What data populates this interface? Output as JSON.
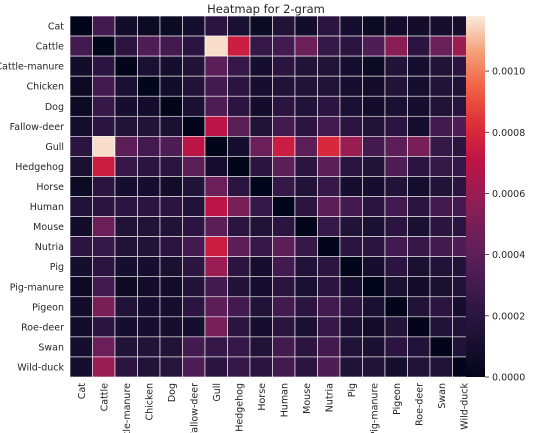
{
  "chart_data": {
    "type": "heatmap",
    "title": "Heatmap for 2-gram",
    "xlabel": "",
    "ylabel": "",
    "x_labels": [
      "Cat",
      "Cattle",
      "Cattle-manure",
      "Chicken",
      "Dog",
      "Fallow-deer",
      "Gull",
      "Hedgehog",
      "Horse",
      "Human",
      "Mouse",
      "Nutria",
      "Pig",
      "Pig-manure",
      "Pigeon",
      "Roe-deer",
      "Swan",
      "Wild-duck"
    ],
    "y_labels": [
      "Cat",
      "Cattle",
      "Cattle-manure",
      "Chicken",
      "Dog",
      "Fallow-deer",
      "Gull",
      "Hedgehog",
      "Horse",
      "Human",
      "Mouse",
      "Nutria",
      "Pig",
      "Pig-manure",
      "Pigeon",
      "Roe-deer",
      "Swan",
      "Wild-duck"
    ],
    "colormap": "rocket",
    "vmin": 0.0,
    "vmax": 0.00118,
    "colorbar_ticks": [
      0.0,
      0.0002,
      0.0004,
      0.0006,
      0.0008,
      0.001
    ],
    "colorbar_tick_labels": [
      "0.0000",
      "0.0002",
      "0.0004",
      "0.0006",
      "0.0008",
      "0.0010"
    ],
    "grid_lines": true,
    "values": [
      [
        0.0,
        0.0003,
        8e-05,
        5e-05,
        5e-05,
        0.0001,
        0.0002,
        0.00012,
        5e-05,
        0.00015,
        8e-05,
        0.0002,
        0.0001,
        5e-05,
        8e-05,
        8e-05,
        0.0001,
        0.0001
      ],
      [
        0.0003,
        0.0,
        0.0002,
        0.00035,
        0.0003,
        0.0002,
        0.00116,
        0.00075,
        0.00025,
        0.0003,
        0.00045,
        0.00025,
        0.0002,
        0.00035,
        0.00055,
        0.0002,
        0.00045,
        0.0006
      ],
      [
        8e-05,
        0.0002,
        0.0,
        0.00012,
        0.0001,
        0.00015,
        0.0004,
        0.00025,
        0.0001,
        0.0002,
        0.00015,
        0.00015,
        0.0001,
        5e-05,
        0.00015,
        0.0001,
        0.00015,
        0.0002
      ],
      [
        5e-05,
        0.0003,
        0.00012,
        0.0,
        8e-05,
        0.00015,
        0.0003,
        0.0002,
        0.0001,
        0.00015,
        0.00015,
        0.00015,
        0.0001,
        8e-05,
        0.00015,
        0.0001,
        0.00015,
        0.00015
      ],
      [
        5e-05,
        0.00025,
        0.0001,
        8e-05,
        0.0,
        0.00012,
        0.00035,
        0.0002,
        8e-05,
        0.0002,
        0.00015,
        0.0002,
        0.00012,
        8e-05,
        0.00012,
        0.0001,
        0.00015,
        0.00018
      ],
      [
        0.0001,
        0.0002,
        0.00015,
        0.00015,
        0.00012,
        0.0,
        0.0007,
        0.0004,
        0.00015,
        0.0003,
        0.0002,
        0.0003,
        0.0002,
        0.00015,
        0.0002,
        0.0001,
        0.0003,
        0.00035
      ],
      [
        0.0002,
        0.00116,
        0.0004,
        0.0003,
        0.00035,
        0.0007,
        0.0,
        0.0001,
        0.00045,
        0.00075,
        0.0004,
        0.0008,
        0.0006,
        0.0003,
        0.0004,
        0.0005,
        0.00025,
        0.0002
      ],
      [
        0.00012,
        0.00075,
        0.00025,
        0.0002,
        0.0002,
        0.0004,
        0.0001,
        0.0,
        0.0002,
        0.0004,
        0.0002,
        0.0004,
        0.0002,
        0.00015,
        0.00035,
        0.0002,
        0.00025,
        0.00025
      ],
      [
        5e-05,
        0.0002,
        0.0001,
        0.0001,
        8e-05,
        0.00015,
        0.00045,
        0.0002,
        0.0,
        0.00025,
        0.00015,
        0.00025,
        0.0001,
        0.0001,
        0.00015,
        0.0001,
        0.00015,
        0.0002
      ],
      [
        0.00015,
        0.0002,
        0.0002,
        0.0002,
        0.0002,
        0.00015,
        0.0007,
        0.0005,
        0.00025,
        0.0,
        0.0002,
        0.0004,
        0.0003,
        0.0002,
        0.0003,
        0.0002,
        0.0003,
        0.0003
      ],
      [
        8e-05,
        0.00045,
        0.00015,
        0.00015,
        0.00015,
        0.0002,
        0.0004,
        0.0002,
        0.00015,
        0.0002,
        0.0,
        0.00025,
        0.00015,
        0.00012,
        0.0002,
        0.00012,
        0.0002,
        0.0002
      ],
      [
        0.0002,
        0.00025,
        0.00015,
        0.00015,
        0.0002,
        0.0003,
        0.00075,
        0.0004,
        0.00025,
        0.0004,
        0.00025,
        0.0,
        0.0002,
        0.0002,
        0.0003,
        0.00025,
        0.0003,
        0.00035
      ],
      [
        0.0001,
        0.0002,
        0.0001,
        0.0001,
        0.00012,
        0.0002,
        0.0006,
        0.0002,
        0.0001,
        0.0003,
        0.00015,
        0.0002,
        0.0,
        0.0001,
        0.0002,
        0.00012,
        0.00015,
        0.00015
      ],
      [
        5e-05,
        0.0003,
        5e-05,
        8e-05,
        8e-05,
        0.00015,
        0.0003,
        0.00015,
        0.0001,
        0.0002,
        0.00012,
        0.0002,
        0.0001,
        0.0,
        0.00012,
        8e-05,
        0.00012,
        0.00015
      ],
      [
        8e-05,
        0.0005,
        0.00015,
        0.0001,
        0.0001,
        0.0002,
        0.0004,
        0.0003,
        0.00015,
        0.0003,
        0.0002,
        0.0003,
        0.0002,
        0.00012,
        0.0,
        0.00015,
        0.0002,
        0.0001
      ],
      [
        8e-05,
        0.0002,
        0.0001,
        0.0001,
        0.0001,
        0.0001,
        0.0005,
        0.0002,
        0.0001,
        0.0002,
        0.00012,
        0.00025,
        0.00012,
        8e-05,
        0.00015,
        0.0,
        0.00015,
        0.00015
      ],
      [
        0.0001,
        0.00045,
        0.00015,
        0.00015,
        0.00015,
        0.0003,
        0.00025,
        0.00025,
        0.00015,
        0.0003,
        0.0002,
        0.0003,
        0.00015,
        0.00012,
        0.0002,
        0.00015,
        0.0,
        0.00015
      ],
      [
        0.0001,
        0.0006,
        0.0002,
        0.00015,
        0.00018,
        0.00035,
        0.0002,
        0.00025,
        0.0002,
        0.0003,
        0.0002,
        0.00035,
        0.00015,
        0.00015,
        0.0001,
        0.00015,
        0.00015,
        0.0
      ]
    ]
  }
}
